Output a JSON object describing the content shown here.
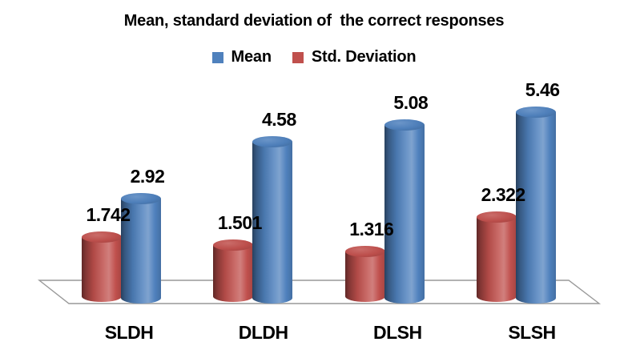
{
  "chart_data": {
    "type": "bar",
    "subtype": "3d-cylinder",
    "title": "Mean, standard deviation of  the correct responses",
    "categories": [
      "SLDH",
      "DLDH",
      "DLSH",
      "SLSH"
    ],
    "series": [
      {
        "name": "Std. Deviation",
        "color": "#c0504d",
        "values": [
          1.742,
          1.501,
          1.316,
          2.322
        ]
      },
      {
        "name": "Mean",
        "color": "#4f81bd",
        "values": [
          2.92,
          4.58,
          5.08,
          5.46
        ]
      }
    ],
    "legend": {
      "position": "top",
      "entries": [
        {
          "label": "Mean",
          "color": "#4f81bd"
        },
        {
          "label": "Std. Deviation",
          "color": "#c0504d"
        }
      ]
    },
    "value_labels_shown": true,
    "y_axis_visible": false,
    "gridlines": false,
    "ylim": [
      0,
      6
    ],
    "floor_outline_color": "#999999",
    "background_color": "#ffffff",
    "text_color": "#000000"
  }
}
